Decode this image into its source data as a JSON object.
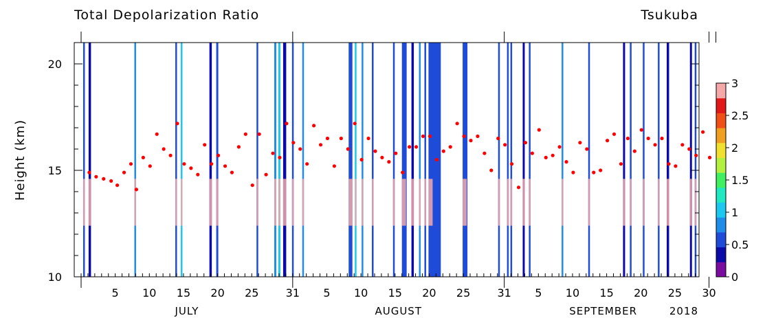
{
  "chart_data": {
    "type": "heatmap",
    "title": "Total Depolarization Ratio",
    "site": "Tsukuba",
    "ylabel": "Height (km)",
    "ylim": [
      10,
      21
    ],
    "yticks": [
      "10",
      "15",
      "20"
    ],
    "year": "2018",
    "xlim_days": [
      0,
      91
    ],
    "months": [
      {
        "label": "JULY",
        "start": 0
      },
      {
        "label": "AUGUST",
        "start": 31
      },
      {
        "label": "SEPTEMBER",
        "start": 62
      }
    ],
    "day_ticks": [
      {
        "day": 5,
        "label": "5"
      },
      {
        "day": 10,
        "label": "10"
      },
      {
        "day": 15,
        "label": "15"
      },
      {
        "day": 20,
        "label": "20"
      },
      {
        "day": 25,
        "label": "25"
      },
      {
        "day": 31,
        "label": "31"
      },
      {
        "day": 36,
        "label": "5"
      },
      {
        "day": 41,
        "label": "10"
      },
      {
        "day": 46,
        "label": "15"
      },
      {
        "day": 51,
        "label": "20"
      },
      {
        "day": 56,
        "label": "25"
      },
      {
        "day": 62,
        "label": "31"
      },
      {
        "day": 67,
        "label": "5"
      },
      {
        "day": 72,
        "label": "10"
      },
      {
        "day": 77,
        "label": "15"
      },
      {
        "day": 82,
        "label": "20"
      },
      {
        "day": 87,
        "label": "25"
      },
      {
        "day": 92,
        "label": "30"
      }
    ],
    "colorbar": {
      "min": 0,
      "max": 3,
      "labels": [
        "0",
        "0.5",
        "1",
        "1.5",
        "2",
        "2.5",
        "3"
      ],
      "colors": [
        "#7a0da0",
        "#0a0aa8",
        "#1e4cd8",
        "#1e8ce8",
        "#1cc8f0",
        "#20e8c0",
        "#40f060",
        "#b4f040",
        "#f0e030",
        "#f0a020",
        "#f05018",
        "#e01818",
        "#f4a8a8"
      ]
    },
    "tropopause_series": {
      "name": "",
      "color": "#ff0000",
      "points": [
        [
          1.2,
          14.9
        ],
        [
          2.2,
          14.7
        ],
        [
          3.3,
          14.6
        ],
        [
          4.4,
          14.5
        ],
        [
          5.3,
          14.3
        ],
        [
          6.3,
          14.9
        ],
        [
          7.3,
          15.3
        ],
        [
          8.1,
          14.1
        ],
        [
          9.1,
          15.6
        ],
        [
          10.1,
          15.2
        ],
        [
          11.1,
          16.7
        ],
        [
          12.1,
          16.0
        ],
        [
          13.1,
          15.7
        ],
        [
          14.1,
          17.2
        ],
        [
          15.1,
          15.3
        ],
        [
          16.1,
          15.1
        ],
        [
          17.1,
          14.8
        ],
        [
          18.1,
          16.2
        ],
        [
          19.1,
          15.3
        ],
        [
          20.1,
          15.7
        ],
        [
          21.1,
          15.2
        ],
        [
          22.1,
          14.9
        ],
        [
          23.1,
          16.1
        ],
        [
          24.1,
          16.7
        ],
        [
          25.1,
          14.3
        ],
        [
          26.1,
          16.7
        ],
        [
          27.1,
          14.8
        ],
        [
          28.1,
          15.8
        ],
        [
          29.1,
          15.6
        ],
        [
          30.1,
          17.2
        ],
        [
          31.1,
          16.3
        ],
        [
          32.1,
          16.0
        ],
        [
          33.1,
          15.3
        ],
        [
          34.1,
          17.1
        ],
        [
          35.1,
          16.2
        ],
        [
          36.1,
          16.5
        ],
        [
          37.1,
          15.2
        ],
        [
          38.1,
          16.5
        ],
        [
          39.1,
          16.0
        ],
        [
          40.1,
          17.2
        ],
        [
          41.1,
          15.5
        ],
        [
          42.1,
          16.5
        ],
        [
          43.1,
          15.9
        ],
        [
          44.1,
          15.6
        ],
        [
          45.1,
          15.4
        ],
        [
          46.1,
          15.8
        ],
        [
          47.1,
          14.9
        ],
        [
          48.1,
          16.1
        ],
        [
          49.1,
          16.1
        ],
        [
          50.1,
          16.6
        ],
        [
          51.1,
          16.6
        ],
        [
          52.1,
          15.5
        ],
        [
          53.1,
          15.9
        ],
        [
          54.1,
          16.1
        ],
        [
          55.1,
          17.2
        ],
        [
          56.1,
          16.6
        ],
        [
          57.1,
          16.4
        ],
        [
          58.1,
          16.6
        ],
        [
          59.1,
          15.8
        ],
        [
          60.1,
          15.0
        ],
        [
          61.1,
          16.5
        ],
        [
          62.1,
          16.2
        ],
        [
          63.1,
          15.3
        ],
        [
          64.1,
          14.2
        ],
        [
          65.1,
          16.3
        ],
        [
          66.1,
          15.8
        ],
        [
          67.1,
          16.9
        ],
        [
          68.1,
          15.6
        ],
        [
          69.1,
          15.7
        ],
        [
          70.1,
          16.1
        ],
        [
          71.1,
          15.4
        ],
        [
          72.1,
          14.9
        ],
        [
          73.1,
          16.3
        ],
        [
          74.1,
          16.0
        ],
        [
          75.1,
          14.9
        ],
        [
          76.1,
          15.0
        ],
        [
          77.1,
          16.4
        ],
        [
          78.1,
          16.7
        ],
        [
          79.1,
          15.3
        ],
        [
          80.1,
          16.5
        ],
        [
          81.1,
          15.9
        ],
        [
          82.1,
          16.9
        ],
        [
          83.1,
          16.5
        ],
        [
          84.1,
          16.2
        ],
        [
          85.1,
          16.5
        ],
        [
          86.1,
          15.3
        ],
        [
          87.1,
          15.2
        ],
        [
          88.1,
          16.2
        ],
        [
          89.1,
          16.0
        ],
        [
          90.1,
          15.7
        ],
        [
          91.1,
          16.8
        ],
        [
          92.1,
          15.6
        ]
      ]
    },
    "profiles": [
      {
        "day": 0.3,
        "w": 0.2,
        "color": "#1e4cd8"
      },
      {
        "day": 1.1,
        "w": 0.35,
        "color": "#0a0aa8"
      },
      {
        "day": 7.8,
        "w": 0.25,
        "color": "#1e8ce8"
      },
      {
        "day": 13.8,
        "w": 0.25,
        "color": "#1e4cd8"
      },
      {
        "day": 14.6,
        "w": 0.15,
        "color": "#1cc8f0"
      },
      {
        "day": 18.8,
        "w": 0.35,
        "color": "#0a0aa8"
      },
      {
        "day": 19.8,
        "w": 0.3,
        "color": "#1e4cd8"
      },
      {
        "day": 25.7,
        "w": 0.2,
        "color": "#1e4cd8"
      },
      {
        "day": 28.3,
        "w": 0.3,
        "color": "#1e8ce8"
      },
      {
        "day": 28.9,
        "w": 0.3,
        "color": "#1cc8f0"
      },
      {
        "day": 29.6,
        "w": 0.45,
        "color": "#0a0aa8"
      },
      {
        "day": 30.9,
        "w": 0.25,
        "color": "#1e4cd8"
      },
      {
        "day": 32.4,
        "w": 0.2,
        "color": "#1e8ce8"
      },
      {
        "day": 39.2,
        "w": 0.55,
        "color": "#1e4cd8"
      },
      {
        "day": 40.1,
        "w": 0.25,
        "color": "#1cc8f0"
      },
      {
        "day": 41.1,
        "w": 0.2,
        "color": "#1e8ce8"
      },
      {
        "day": 42.6,
        "w": 0.15,
        "color": "#1e4cd8"
      },
      {
        "day": 45.7,
        "w": 0.15,
        "color": "#1e4cd8"
      },
      {
        "day": 47.0,
        "w": 0.7,
        "color": "#1e4cd8"
      },
      {
        "day": 48.4,
        "w": 0.35,
        "color": "#0a0aa8"
      },
      {
        "day": 49.5,
        "w": 0.2,
        "color": "#1e8ce8"
      },
      {
        "day": 50.3,
        "w": 0.2,
        "color": "#1e4cd8"
      },
      {
        "day": 50.9,
        "w": 1.8,
        "color": "#1e4cd8"
      },
      {
        "day": 55.9,
        "w": 0.7,
        "color": "#1e4cd8"
      },
      {
        "day": 61.1,
        "w": 0.2,
        "color": "#1e4cd8"
      },
      {
        "day": 62.4,
        "w": 0.2,
        "color": "#1e4cd8"
      },
      {
        "day": 62.9,
        "w": 0.25,
        "color": "#1e4cd8"
      },
      {
        "day": 64.7,
        "w": 0.3,
        "color": "#0a0aa8"
      },
      {
        "day": 65.6,
        "w": 0.2,
        "color": "#1e4cd8"
      },
      {
        "day": 70.4,
        "w": 0.2,
        "color": "#1e8ce8"
      },
      {
        "day": 74.3,
        "w": 0.2,
        "color": "#1e4cd8"
      },
      {
        "day": 79.4,
        "w": 0.3,
        "color": "#0a0aa8"
      },
      {
        "day": 80.4,
        "w": 0.25,
        "color": "#1e4cd8"
      },
      {
        "day": 82.3,
        "w": 0.25,
        "color": "#1e4cd8"
      },
      {
        "day": 84.5,
        "w": 0.2,
        "color": "#1e4cd8"
      },
      {
        "day": 85.8,
        "w": 0.35,
        "color": "#0a0aa8"
      },
      {
        "day": 89.2,
        "w": 0.3,
        "color": "#0a0aa8"
      },
      {
        "day": 89.9,
        "w": 0.2,
        "color": "#1e4cd8"
      }
    ]
  }
}
